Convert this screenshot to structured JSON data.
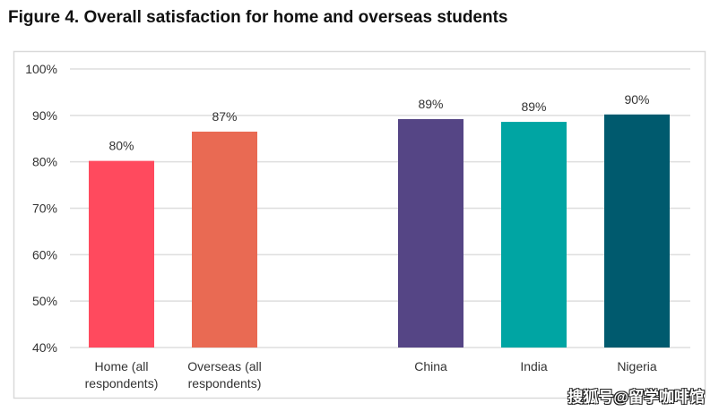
{
  "chart_data": {
    "type": "bar",
    "title": "Figure 4. Overall satisfaction for home and overseas students",
    "xlabel": "",
    "ylabel": "",
    "ylim": [
      40,
      100
    ],
    "yticks": [
      "40%",
      "50%",
      "60%",
      "70%",
      "80%",
      "90%",
      "100%"
    ],
    "grid": true,
    "categories": [
      [
        "Home (all",
        "respondents)"
      ],
      [
        "Overseas (all",
        "respondents)"
      ],
      [
        "China"
      ],
      [
        "India"
      ],
      [
        "Nigeria"
      ]
    ],
    "values": [
      80.2,
      86.5,
      89.2,
      88.6,
      90.2
    ],
    "data_labels": [
      "80%",
      "87%",
      "89%",
      "89%",
      "90%"
    ],
    "colors": [
      "#ff4a5e",
      "#e96a53",
      "#554585",
      "#00a5a3",
      "#005a6e"
    ]
  },
  "watermark": "搜狐号@留学咖啡馆"
}
